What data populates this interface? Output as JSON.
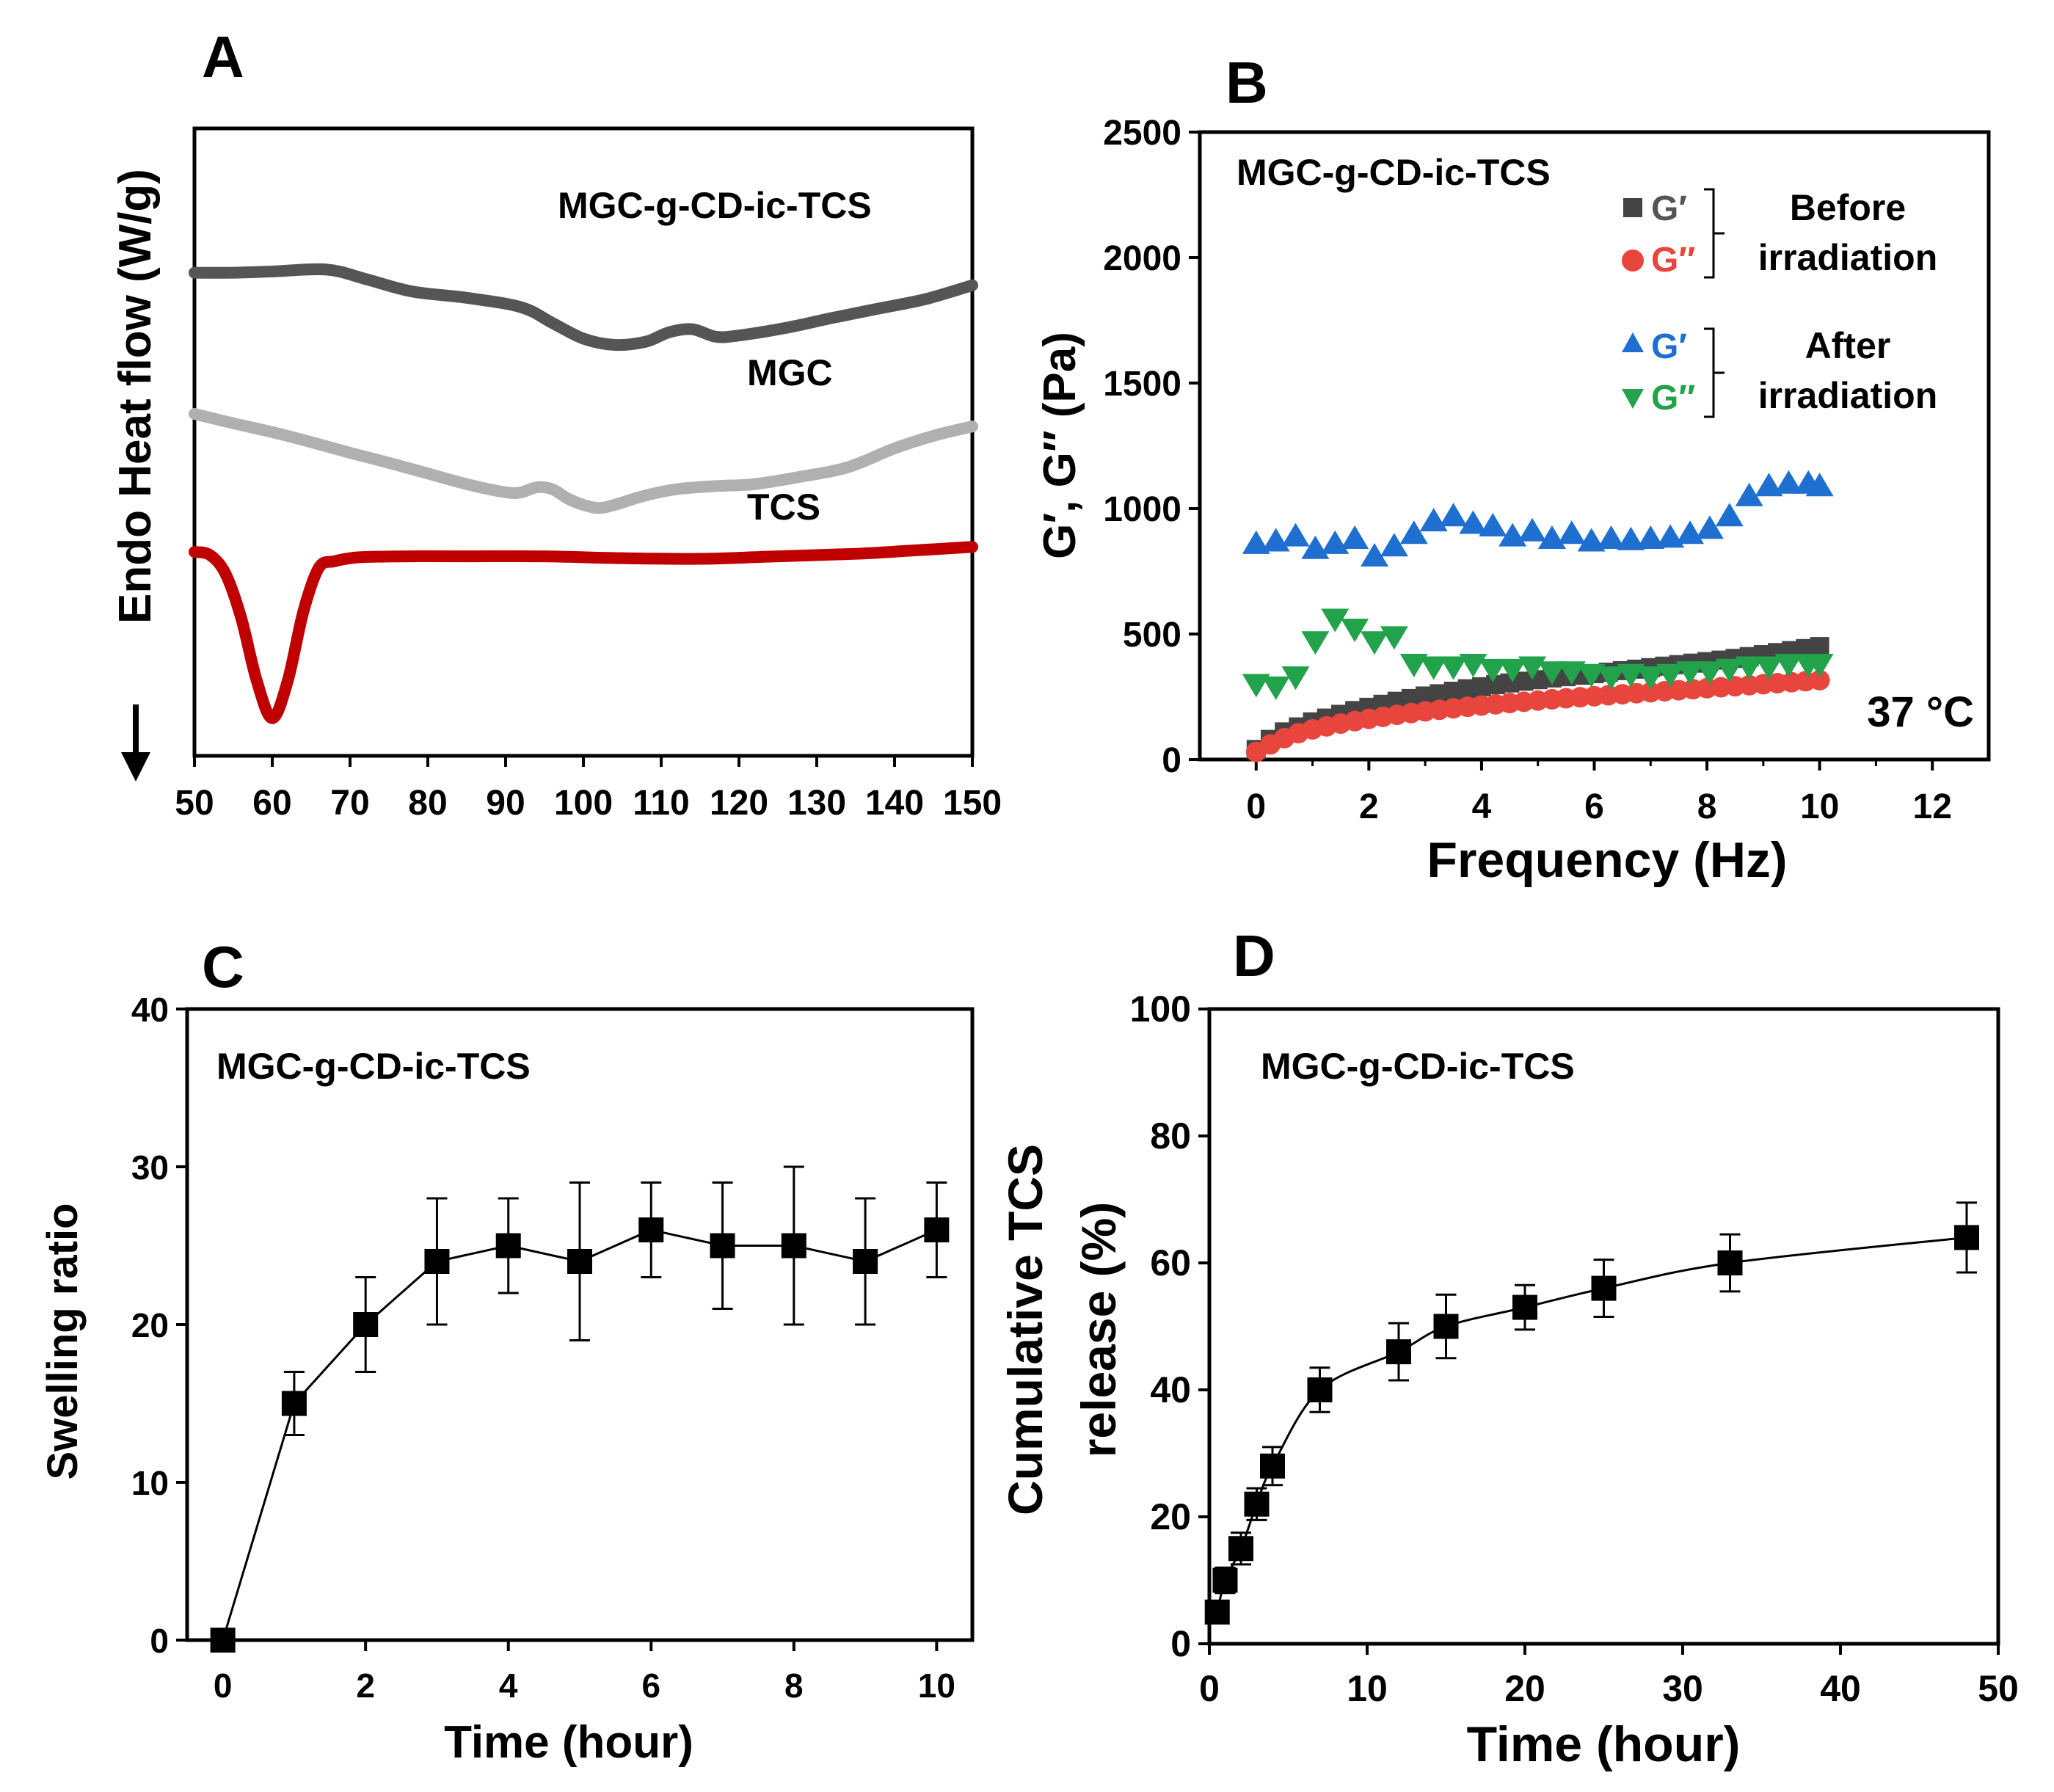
{
  "chart_data": [
    {
      "panel": "A",
      "type": "line",
      "xlabel": "",
      "ylabel": "Endo Heat flow (W/g)",
      "xlim": [
        50,
        150
      ],
      "x_ticks": [
        "50",
        "60",
        "70",
        "80",
        "90",
        "100",
        "110",
        "120",
        "130",
        "140",
        "150"
      ],
      "y_ticks_shown": false,
      "series": [
        {
          "name": "MGC-g-CD-ic-TCS",
          "color": "#555555",
          "x": [
            50,
            55,
            60,
            67,
            72,
            78,
            85,
            92,
            96,
            100,
            104,
            108,
            111,
            114,
            117,
            120,
            126,
            132,
            138,
            144,
            150
          ],
          "y": [
            0.77,
            0.77,
            0.772,
            0.775,
            0.76,
            0.74,
            0.73,
            0.715,
            0.69,
            0.665,
            0.655,
            0.66,
            0.675,
            0.68,
            0.668,
            0.67,
            0.682,
            0.698,
            0.713,
            0.728,
            0.75
          ]
        },
        {
          "name": "MGC",
          "color": "#b0b0b0",
          "x": [
            50,
            55,
            60,
            65,
            70,
            75,
            80,
            85,
            90,
            92,
            94,
            96,
            98,
            100,
            102,
            104,
            108,
            112,
            117,
            122,
            128,
            134,
            140,
            145,
            150
          ],
          "y": [
            0.545,
            0.53,
            0.516,
            0.5,
            0.483,
            0.467,
            0.45,
            0.433,
            0.42,
            0.42,
            0.428,
            0.425,
            0.41,
            0.4,
            0.395,
            0.4,
            0.415,
            0.425,
            0.43,
            0.433,
            0.445,
            0.46,
            0.49,
            0.51,
            0.525
          ]
        },
        {
          "name": "TCS",
          "color": "#c00000",
          "x": [
            50,
            52,
            54,
            56,
            58,
            60,
            62,
            64,
            66,
            68,
            70,
            72,
            78,
            85,
            95,
            105,
            115,
            125,
            135,
            142,
            150
          ],
          "y": [
            0.325,
            0.32,
            0.29,
            0.22,
            0.12,
            0.06,
            0.12,
            0.23,
            0.3,
            0.31,
            0.315,
            0.317,
            0.318,
            0.318,
            0.318,
            0.315,
            0.314,
            0.318,
            0.322,
            0.327,
            0.333
          ]
        }
      ],
      "series_labels": [
        "MGC-g-CD-ic-TCS",
        "MGC",
        "TCS"
      ]
    },
    {
      "panel": "B",
      "type": "scatter",
      "title": "MGC-g-CD-ic-TCS",
      "xlabel": "Frequency (Hz)",
      "ylabel": "G′, G″ (Pa)",
      "xlim": [
        -1,
        13
      ],
      "ylim": [
        0,
        2500
      ],
      "x_ticks": [
        0,
        2,
        4,
        6,
        8,
        10,
        12
      ],
      "y_ticks": [
        0,
        500,
        1000,
        1500,
        2000,
        2500
      ],
      "annotation": "37 °C",
      "legend": {
        "groups": [
          {
            "label_line1": "Before",
            "label_line2": "irradiation",
            "entries": [
              {
                "symbol": "square",
                "label": "G′",
                "color": "#444444"
              },
              {
                "symbol": "circle",
                "label": "G″",
                "color": "#e8453c"
              }
            ]
          },
          {
            "label_line1": "After",
            "label_line2": "irradiation",
            "entries": [
              {
                "symbol": "triangle-up",
                "label": "G′",
                "color": "#1f6fd0"
              },
              {
                "symbol": "triangle-down",
                "label": "G″",
                "color": "#22a24a"
              }
            ]
          }
        ]
      },
      "series": [
        {
          "name": "G′ before irradiation",
          "color": "#444444",
          "marker": "square",
          "x": [
            0,
            0.25,
            0.5,
            0.75,
            1,
            1.25,
            1.5,
            1.75,
            2,
            2.25,
            2.5,
            2.75,
            3,
            3.25,
            3.5,
            3.75,
            4,
            4.25,
            4.5,
            4.75,
            5,
            5.25,
            5.5,
            5.75,
            6,
            6.25,
            6.5,
            6.75,
            7,
            7.25,
            7.5,
            7.75,
            8,
            8.25,
            8.5,
            8.75,
            9,
            9.25,
            9.5,
            9.75,
            10
          ],
          "y": [
            40,
            80,
            110,
            130,
            150,
            165,
            180,
            195,
            208,
            220,
            232,
            243,
            253,
            262,
            272,
            282,
            290,
            298,
            305,
            312,
            318,
            325,
            330,
            336,
            342,
            348,
            354,
            360,
            366,
            372,
            378,
            384,
            390,
            396,
            403,
            410,
            418,
            426,
            434,
            442,
            450
          ]
        },
        {
          "name": "G″ before irradiation",
          "color": "#e8453c",
          "marker": "circle",
          "x": [
            0,
            0.25,
            0.5,
            0.75,
            1,
            1.25,
            1.5,
            1.75,
            2,
            2.25,
            2.5,
            2.75,
            3,
            3.25,
            3.5,
            3.75,
            4,
            4.25,
            4.5,
            4.75,
            5,
            5.25,
            5.5,
            5.75,
            6,
            6.25,
            6.5,
            6.75,
            7,
            7.25,
            7.5,
            7.75,
            8,
            8.25,
            8.5,
            8.75,
            9,
            9.25,
            9.5,
            9.75,
            10
          ],
          "y": [
            30,
            60,
            85,
            105,
            120,
            132,
            143,
            153,
            162,
            170,
            178,
            185,
            192,
            198,
            204,
            210,
            215,
            220,
            225,
            230,
            235,
            240,
            244,
            248,
            252,
            256,
            260,
            264,
            268,
            272,
            276,
            280,
            284,
            288,
            292,
            296,
            300,
            304,
            308,
            312,
            316
          ]
        },
        {
          "name": "G′ after irradiation",
          "color": "#1f6fd0",
          "marker": "triangle-up",
          "x": [
            0,
            0.35,
            0.7,
            1.05,
            1.4,
            1.75,
            2.1,
            2.45,
            2.8,
            3.15,
            3.5,
            3.85,
            4.2,
            4.55,
            4.9,
            5.25,
            5.6,
            5.95,
            6.3,
            6.65,
            7,
            7.35,
            7.7,
            8.05,
            8.4,
            8.75,
            9.1,
            9.45,
            9.8,
            10
          ],
          "y": [
            860,
            870,
            890,
            840,
            860,
            880,
            810,
            850,
            900,
            950,
            970,
            940,
            930,
            890,
            910,
            880,
            900,
            870,
            880,
            875,
            880,
            885,
            900,
            920,
            970,
            1050,
            1090,
            1100,
            1100,
            1090
          ]
        },
        {
          "name": "G″ after irradiation",
          "color": "#22a24a",
          "marker": "triangle-down",
          "x": [
            0,
            0.35,
            0.7,
            1.05,
            1.4,
            1.75,
            2.1,
            2.45,
            2.8,
            3.15,
            3.5,
            3.85,
            4.2,
            4.55,
            4.9,
            5.25,
            5.6,
            5.95,
            6.3,
            6.65,
            7,
            7.35,
            7.7,
            8.05,
            8.4,
            8.75,
            9.1,
            9.45,
            9.8,
            10
          ],
          "y": [
            300,
            290,
            330,
            470,
            560,
            520,
            470,
            490,
            380,
            370,
            370,
            380,
            360,
            360,
            370,
            350,
            350,
            340,
            330,
            340,
            330,
            340,
            350,
            350,
            360,
            370,
            370,
            380,
            380,
            380
          ]
        }
      ]
    },
    {
      "panel": "C",
      "type": "line",
      "title": "MGC-g-CD-ic-TCS",
      "xlabel": "Time (hour)",
      "ylabel": "Swelling ratio",
      "xlim": [
        -0.5,
        10.5
      ],
      "ylim": [
        0,
        40
      ],
      "x_ticks": [
        0,
        2,
        4,
        6,
        8,
        10
      ],
      "y_ticks": [
        0,
        10,
        20,
        30,
        40
      ],
      "series": [
        {
          "name": "Swelling ratio",
          "color": "#000000",
          "marker": "square",
          "x": [
            0,
            1,
            2,
            3,
            4,
            5,
            6,
            7,
            8,
            9,
            10
          ],
          "y": [
            0,
            15,
            20,
            24,
            25,
            24,
            26,
            25,
            25,
            24,
            26
          ],
          "err": [
            0,
            2,
            3,
            4,
            3,
            5,
            3,
            4,
            5,
            4,
            3
          ]
        }
      ]
    },
    {
      "panel": "D",
      "type": "line",
      "title": "MGC-g-CD-ic-TCS",
      "xlabel": "Time (hour)",
      "ylabel_line1": "Cumulative TCS",
      "ylabel_line2": "release (%)",
      "xlim": [
        0,
        50
      ],
      "ylim": [
        0,
        100
      ],
      "x_ticks": [
        0,
        10,
        20,
        30,
        40,
        50
      ],
      "y_ticks": [
        0,
        20,
        40,
        60,
        80,
        100
      ],
      "series": [
        {
          "name": "Cumulative TCS release",
          "color": "#000000",
          "marker": "square",
          "x": [
            0.5,
            1,
            2,
            3,
            4,
            7,
            12,
            15,
            20,
            25,
            33,
            48
          ],
          "y": [
            5,
            10,
            15,
            22,
            28,
            40,
            46,
            50,
            53,
            56,
            60,
            64
          ],
          "err": [
            1.5,
            2,
            2.5,
            2.5,
            3,
            3.5,
            4.5,
            5,
            3.5,
            4.5,
            4.5,
            5.5
          ]
        }
      ]
    }
  ],
  "panel_letters": [
    "A",
    "B",
    "C",
    "D"
  ]
}
